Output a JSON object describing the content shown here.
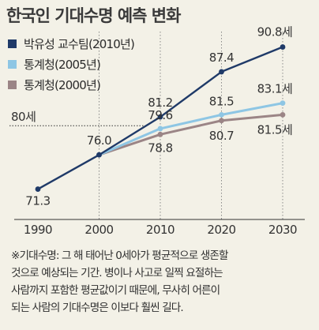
{
  "title": "한국인 기대수명 예측 변화",
  "chart_data": {
    "type": "line",
    "x": [
      1990,
      2000,
      2010,
      2020,
      2030
    ],
    "ylim": [
      68,
      94
    ],
    "reference_line": {
      "value": 80,
      "label": "80세"
    },
    "series": [
      {
        "name": "박유성 교수팀(2010년)",
        "color": "#1f3a68",
        "x": [
          1990,
          2000,
          2010,
          2020,
          2030
        ],
        "values": [
          71.3,
          76.0,
          81.2,
          87.4,
          90.8
        ],
        "labels": [
          "71.3",
          "76.0",
          "81.2",
          "87.4",
          "90.8세"
        ]
      },
      {
        "name": "통계청(2005년)",
        "color": "#8ec6e4",
        "x": [
          2000,
          2010,
          2020,
          2030
        ],
        "values": [
          76.0,
          79.6,
          81.5,
          83.1
        ],
        "labels": [
          "",
          "79.6",
          "81.5",
          "83.1세"
        ]
      },
      {
        "name": "통계청(2000년)",
        "color": "#9b8586",
        "x": [
          2000,
          2010,
          2020,
          2030
        ],
        "values": [
          76.0,
          78.8,
          80.7,
          81.5
        ],
        "labels": [
          "",
          "78.8",
          "80.7",
          "81.5세"
        ]
      }
    ]
  },
  "footnote": [
    "※기대수명: 그 해 태어난 0세아가 평균적으로 생존할",
    "것으로 예상되는 기간. 병이나 사고로 일찍 요절하는",
    "사람까지 포함한 평균값이기 때문에, 무사히 어른이",
    "되는 사람의 기대수명은 이보다 훨씬 길다."
  ]
}
